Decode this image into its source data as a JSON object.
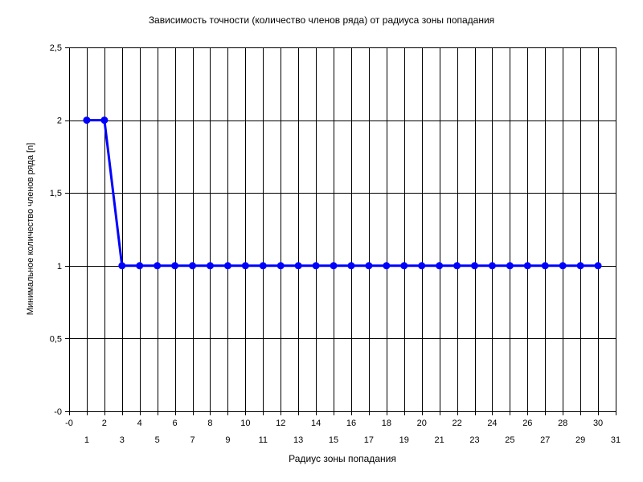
{
  "chart_data": {
    "type": "line",
    "title": "Зависимость точности (количество членов ряда) от радиуса зоны попадания",
    "xlabel": "Радиус зоны попадания",
    "ylabel": "Минимальное количество членов ряда [n]",
    "xlim": [
      0,
      31
    ],
    "ylim": [
      0,
      2.5
    ],
    "x_ticks_upper": [
      "-0",
      "2",
      "4",
      "6",
      "8",
      "10",
      "12",
      "14",
      "16",
      "18",
      "20",
      "22",
      "24",
      "26",
      "28",
      "30"
    ],
    "x_ticks_lower": [
      "1",
      "3",
      "5",
      "7",
      "9",
      "11",
      "13",
      "15",
      "17",
      "19",
      "21",
      "23",
      "25",
      "27",
      "29",
      "31"
    ],
    "y_ticks": [
      "-0",
      "0,5",
      "1",
      "1,5",
      "2",
      "2,5"
    ],
    "grid": true,
    "color": "#0000ff",
    "x": [
      1,
      2,
      3,
      4,
      5,
      6,
      7,
      8,
      9,
      10,
      11,
      12,
      13,
      14,
      15,
      16,
      17,
      18,
      19,
      20,
      21,
      22,
      23,
      24,
      25,
      26,
      27,
      28,
      29,
      30
    ],
    "values": [
      2,
      2,
      1,
      1,
      1,
      1,
      1,
      1,
      1,
      1,
      1,
      1,
      1,
      1,
      1,
      1,
      1,
      1,
      1,
      1,
      1,
      1,
      1,
      1,
      1,
      1,
      1,
      1,
      1,
      1
    ]
  }
}
